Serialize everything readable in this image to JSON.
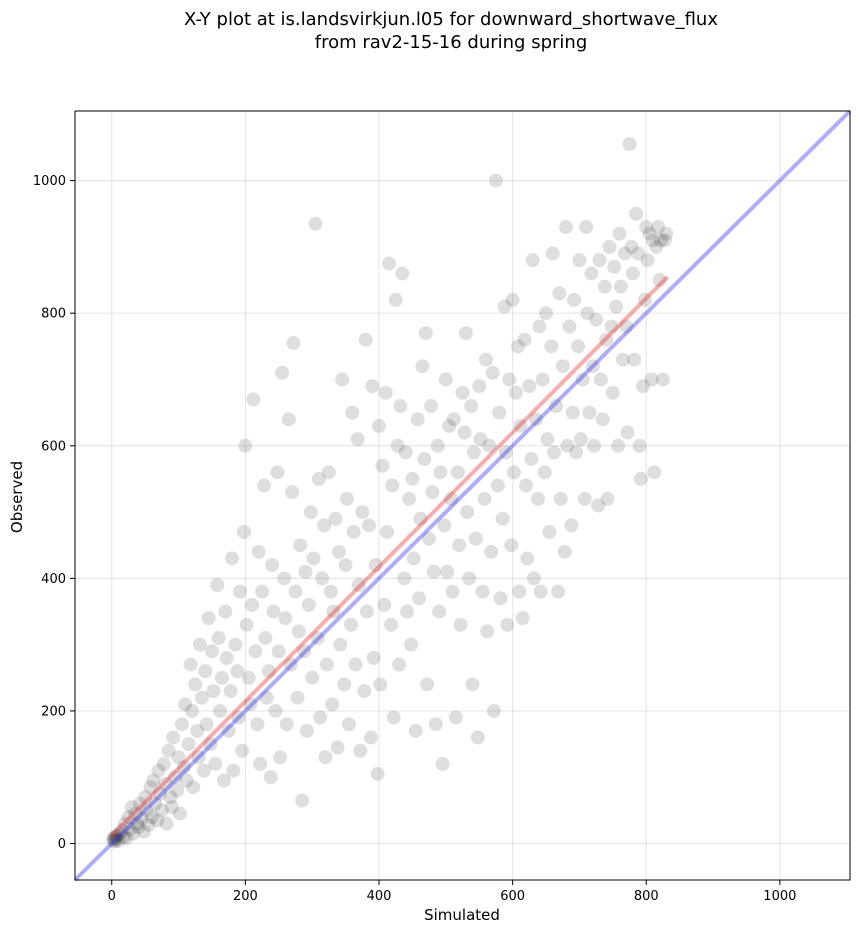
{
  "chart_data": {
    "type": "scatter",
    "title_line1": "X-Y plot at is.landsvirkjun.l05 for downward_shortwave_flux",
    "title_line2": "from rav2-15-16 during spring",
    "xlabel": "Simulated",
    "ylabel": "Observed",
    "xlim": [
      -55,
      1105
    ],
    "ylim": [
      -55,
      1105
    ],
    "xticks": [
      0,
      200,
      400,
      600,
      800,
      1000
    ],
    "yticks": [
      0,
      200,
      400,
      600,
      800,
      1000
    ],
    "grid": true,
    "point_color": "#000000",
    "fit_color": "#ee3333",
    "identity_color": "#3333ee",
    "fit_line": {
      "x": [
        0,
        832
      ],
      "y": [
        12,
        855
      ]
    },
    "identity_line": {
      "x": [
        -55,
        1105
      ],
      "y": [
        -55,
        1105
      ]
    },
    "points": [
      [
        2,
        5
      ],
      [
        3,
        8
      ],
      [
        4,
        3
      ],
      [
        5,
        10
      ],
      [
        6,
        6
      ],
      [
        8,
        12
      ],
      [
        10,
        4
      ],
      [
        12,
        15
      ],
      [
        15,
        20
      ],
      [
        18,
        10
      ],
      [
        20,
        30
      ],
      [
        22,
        8
      ],
      [
        25,
        40
      ],
      [
        28,
        22
      ],
      [
        30,
        55
      ],
      [
        32,
        15
      ],
      [
        35,
        45
      ],
      [
        38,
        30
      ],
      [
        40,
        25
      ],
      [
        42,
        60
      ],
      [
        45,
        38
      ],
      [
        48,
        18
      ],
      [
        50,
        70
      ],
      [
        52,
        50
      ],
      [
        55,
        28
      ],
      [
        58,
        85
      ],
      [
        60,
        40
      ],
      [
        62,
        95
      ],
      [
        65,
        60
      ],
      [
        68,
        35
      ],
      [
        70,
        110
      ],
      [
        72,
        75
      ],
      [
        75,
        50
      ],
      [
        78,
        120
      ],
      [
        80,
        90
      ],
      [
        82,
        30
      ],
      [
        85,
        140
      ],
      [
        88,
        70
      ],
      [
        90,
        55
      ],
      [
        92,
        160
      ],
      [
        95,
        100
      ],
      [
        98,
        80
      ],
      [
        100,
        130
      ],
      [
        102,
        45
      ],
      [
        105,
        180
      ],
      [
        108,
        115
      ],
      [
        110,
        210
      ],
      [
        112,
        95
      ],
      [
        115,
        150
      ],
      [
        118,
        270
      ],
      [
        120,
        200
      ],
      [
        122,
        85
      ],
      [
        125,
        240
      ],
      [
        128,
        170
      ],
      [
        130,
        130
      ],
      [
        132,
        300
      ],
      [
        135,
        220
      ],
      [
        138,
        110
      ],
      [
        140,
        260
      ],
      [
        142,
        180
      ],
      [
        145,
        340
      ],
      [
        148,
        150
      ],
      [
        150,
        290
      ],
      [
        152,
        230
      ],
      [
        155,
        120
      ],
      [
        158,
        390
      ],
      [
        160,
        310
      ],
      [
        162,
        200
      ],
      [
        165,
        250
      ],
      [
        168,
        95
      ],
      [
        170,
        350
      ],
      [
        172,
        280
      ],
      [
        175,
        170
      ],
      [
        178,
        230
      ],
      [
        180,
        430
      ],
      [
        182,
        110
      ],
      [
        185,
        300
      ],
      [
        188,
        260
      ],
      [
        190,
        190
      ],
      [
        192,
        380
      ],
      [
        195,
        140
      ],
      [
        198,
        470
      ],
      [
        200,
        600
      ],
      [
        202,
        330
      ],
      [
        205,
        250
      ],
      [
        208,
        210
      ],
      [
        210,
        360
      ],
      [
        212,
        670
      ],
      [
        215,
        290
      ],
      [
        218,
        180
      ],
      [
        220,
        440
      ],
      [
        222,
        120
      ],
      [
        225,
        380
      ],
      [
        228,
        540
      ],
      [
        230,
        310
      ],
      [
        232,
        220
      ],
      [
        235,
        260
      ],
      [
        238,
        100
      ],
      [
        240,
        420
      ],
      [
        242,
        350
      ],
      [
        245,
        200
      ],
      [
        248,
        560
      ],
      [
        250,
        290
      ],
      [
        252,
        130
      ],
      [
        255,
        710
      ],
      [
        258,
        400
      ],
      [
        260,
        340
      ],
      [
        262,
        180
      ],
      [
        265,
        640
      ],
      [
        268,
        270
      ],
      [
        270,
        530
      ],
      [
        272,
        755
      ],
      [
        275,
        380
      ],
      [
        278,
        220
      ],
      [
        280,
        320
      ],
      [
        282,
        450
      ],
      [
        285,
        65
      ],
      [
        288,
        290
      ],
      [
        290,
        410
      ],
      [
        292,
        170
      ],
      [
        295,
        360
      ],
      [
        298,
        500
      ],
      [
        300,
        250
      ],
      [
        302,
        430
      ],
      [
        305,
        935
      ],
      [
        308,
        310
      ],
      [
        310,
        550
      ],
      [
        312,
        190
      ],
      [
        315,
        400
      ],
      [
        318,
        480
      ],
      [
        320,
        130
      ],
      [
        322,
        270
      ],
      [
        325,
        560
      ],
      [
        328,
        380
      ],
      [
        330,
        210
      ],
      [
        332,
        350
      ],
      [
        335,
        490
      ],
      [
        338,
        145
      ],
      [
        340,
        440
      ],
      [
        342,
        300
      ],
      [
        345,
        700
      ],
      [
        348,
        240
      ],
      [
        350,
        420
      ],
      [
        352,
        520
      ],
      [
        355,
        180
      ],
      [
        358,
        330
      ],
      [
        360,
        650
      ],
      [
        362,
        470
      ],
      [
        365,
        270
      ],
      [
        368,
        610
      ],
      [
        370,
        390
      ],
      [
        372,
        140
      ],
      [
        375,
        500
      ],
      [
        378,
        230
      ],
      [
        380,
        760
      ],
      [
        382,
        350
      ],
      [
        385,
        480
      ],
      [
        388,
        160
      ],
      [
        390,
        690
      ],
      [
        392,
        280
      ],
      [
        395,
        420
      ],
      [
        398,
        105
      ],
      [
        400,
        630
      ],
      [
        402,
        240
      ],
      [
        405,
        570
      ],
      [
        408,
        360
      ],
      [
        410,
        680
      ],
      [
        412,
        470
      ],
      [
        415,
        875
      ],
      [
        418,
        330
      ],
      [
        420,
        540
      ],
      [
        422,
        190
      ],
      [
        425,
        820
      ],
      [
        428,
        600
      ],
      [
        430,
        270
      ],
      [
        432,
        660
      ],
      [
        435,
        860
      ],
      [
        438,
        400
      ],
      [
        440,
        590
      ],
      [
        442,
        350
      ],
      [
        445,
        520
      ],
      [
        448,
        300
      ],
      [
        450,
        550
      ],
      [
        452,
        430
      ],
      [
        455,
        170
      ],
      [
        458,
        640
      ],
      [
        460,
        370
      ],
      [
        462,
        490
      ],
      [
        465,
        720
      ],
      [
        468,
        580
      ],
      [
        470,
        770
      ],
      [
        472,
        240
      ],
      [
        475,
        460
      ],
      [
        478,
        660
      ],
      [
        480,
        530
      ],
      [
        482,
        410
      ],
      [
        485,
        180
      ],
      [
        488,
        600
      ],
      [
        490,
        350
      ],
      [
        492,
        560
      ],
      [
        495,
        120
      ],
      [
        498,
        480
      ],
      [
        500,
        700
      ],
      [
        502,
        410
      ],
      [
        505,
        630
      ],
      [
        508,
        520
      ],
      [
        510,
        380
      ],
      [
        512,
        640
      ],
      [
        515,
        190
      ],
      [
        518,
        560
      ],
      [
        520,
        450
      ],
      [
        522,
        330
      ],
      [
        525,
        680
      ],
      [
        528,
        620
      ],
      [
        530,
        770
      ],
      [
        532,
        500
      ],
      [
        535,
        400
      ],
      [
        538,
        660
      ],
      [
        540,
        240
      ],
      [
        542,
        590
      ],
      [
        545,
        460
      ],
      [
        548,
        160
      ],
      [
        550,
        690
      ],
      [
        552,
        610
      ],
      [
        555,
        380
      ],
      [
        558,
        520
      ],
      [
        560,
        730
      ],
      [
        562,
        320
      ],
      [
        565,
        600
      ],
      [
        568,
        440
      ],
      [
        570,
        710
      ],
      [
        572,
        200
      ],
      [
        575,
        1000
      ],
      [
        578,
        540
      ],
      [
        580,
        650
      ],
      [
        582,
        370
      ],
      [
        585,
        490
      ],
      [
        588,
        810
      ],
      [
        590,
        590
      ],
      [
        592,
        330
      ],
      [
        595,
        700
      ],
      [
        598,
        450
      ],
      [
        600,
        820
      ],
      [
        602,
        560
      ],
      [
        605,
        680
      ],
      [
        608,
        750
      ],
      [
        610,
        380
      ],
      [
        612,
        630
      ],
      [
        615,
        340
      ],
      [
        618,
        760
      ],
      [
        620,
        540
      ],
      [
        622,
        430
      ],
      [
        625,
        690
      ],
      [
        628,
        580
      ],
      [
        630,
        880
      ],
      [
        632,
        400
      ],
      [
        635,
        640
      ],
      [
        638,
        520
      ],
      [
        640,
        780
      ],
      [
        642,
        380
      ],
      [
        645,
        700
      ],
      [
        648,
        560
      ],
      [
        650,
        800
      ],
      [
        652,
        610
      ],
      [
        655,
        470
      ],
      [
        658,
        750
      ],
      [
        660,
        890
      ],
      [
        662,
        590
      ],
      [
        665,
        660
      ],
      [
        668,
        380
      ],
      [
        670,
        830
      ],
      [
        672,
        520
      ],
      [
        675,
        720
      ],
      [
        678,
        440
      ],
      [
        680,
        930
      ],
      [
        682,
        600
      ],
      [
        685,
        780
      ],
      [
        688,
        480
      ],
      [
        690,
        650
      ],
      [
        692,
        820
      ],
      [
        695,
        590
      ],
      [
        698,
        750
      ],
      [
        700,
        880
      ],
      [
        702,
        610
      ],
      [
        705,
        700
      ],
      [
        708,
        520
      ],
      [
        710,
        930
      ],
      [
        712,
        800
      ],
      [
        715,
        650
      ],
      [
        718,
        860
      ],
      [
        720,
        720
      ],
      [
        722,
        600
      ],
      [
        725,
        790
      ],
      [
        728,
        510
      ],
      [
        730,
        880
      ],
      [
        732,
        700
      ],
      [
        735,
        640
      ],
      [
        738,
        840
      ],
      [
        740,
        760
      ],
      [
        742,
        520
      ],
      [
        745,
        900
      ],
      [
        748,
        780
      ],
      [
        750,
        680
      ],
      [
        752,
        870
      ],
      [
        755,
        810
      ],
      [
        758,
        600
      ],
      [
        760,
        920
      ],
      [
        762,
        840
      ],
      [
        765,
        730
      ],
      [
        768,
        890
      ],
      [
        770,
        780
      ],
      [
        772,
        620
      ],
      [
        775,
        1055
      ],
      [
        778,
        900
      ],
      [
        780,
        860
      ],
      [
        782,
        730
      ],
      [
        785,
        950
      ],
      [
        788,
        890
      ],
      [
        790,
        600
      ],
      [
        792,
        550
      ],
      [
        795,
        690
      ],
      [
        798,
        820
      ],
      [
        800,
        930
      ],
      [
        802,
        880
      ],
      [
        805,
        920
      ],
      [
        808,
        700
      ],
      [
        810,
        910
      ],
      [
        812,
        560
      ],
      [
        815,
        900
      ],
      [
        818,
        930
      ],
      [
        820,
        850
      ],
      [
        822,
        910
      ],
      [
        825,
        700
      ],
      [
        828,
        910
      ],
      [
        830,
        920
      ]
    ]
  }
}
